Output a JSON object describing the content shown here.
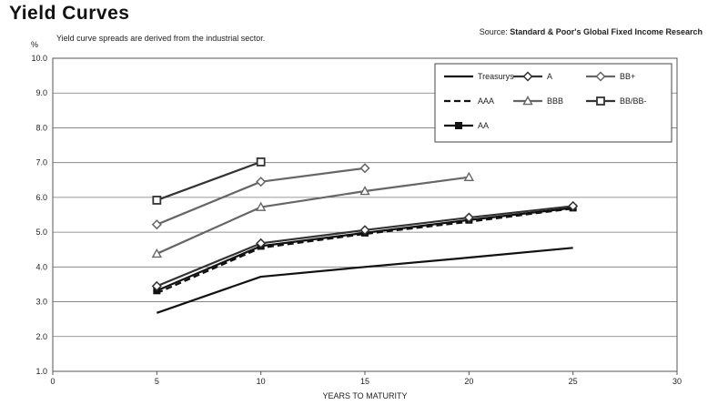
{
  "chart_data": {
    "type": "line",
    "title": "Yield Curves",
    "subtitle": "Yield curve spreads are derived from the industrial sector.",
    "source_label": "Source:",
    "source": "Standard & Poor's Global Fixed Income Research",
    "ylabel": "%",
    "xlabel": "YEARS TO MATURITY",
    "xlim": [
      0,
      30
    ],
    "ylim": [
      1.0,
      10.0
    ],
    "x_ticks": [
      0,
      5,
      10,
      15,
      20,
      25,
      30
    ],
    "y_ticks": [
      "1.0",
      "2.0",
      "3.0",
      "4.0",
      "5.0",
      "6.0",
      "7.0",
      "8.0",
      "9.0",
      "10.0"
    ],
    "grid": "horizontal",
    "legend_position": "top-right",
    "series": [
      {
        "name": "Treasurys",
        "marker": "none",
        "dash": "solid",
        "color": "#111111",
        "x": [
          5,
          10,
          15,
          20,
          25
        ],
        "y": [
          2.68,
          3.72,
          4.0,
          4.27,
          4.55
        ]
      },
      {
        "name": "AAA",
        "marker": "none",
        "dash": "dashed",
        "color": "#111111",
        "x": [
          5,
          10,
          15,
          20,
          25
        ],
        "y": [
          3.25,
          4.55,
          4.95,
          5.3,
          5.68
        ]
      },
      {
        "name": "AA",
        "marker": "square-filled",
        "dash": "solid",
        "color": "#111111",
        "x": [
          5,
          10,
          15,
          20,
          25
        ],
        "y": [
          3.32,
          4.6,
          4.98,
          5.35,
          5.7
        ]
      },
      {
        "name": "A",
        "marker": "diamond",
        "dash": "solid",
        "color": "#333333",
        "x": [
          5,
          10,
          15,
          20,
          25
        ],
        "y": [
          3.45,
          4.68,
          5.06,
          5.42,
          5.75
        ]
      },
      {
        "name": "BBB",
        "marker": "triangle",
        "dash": "solid",
        "color": "#666666",
        "x": [
          5,
          10,
          15,
          20
        ],
        "y": [
          4.38,
          5.72,
          6.18,
          6.58
        ]
      },
      {
        "name": "BB+",
        "marker": "diamond",
        "dash": "solid",
        "color": "#666666",
        "x": [
          5,
          10,
          15
        ],
        "y": [
          5.22,
          6.45,
          6.84
        ]
      },
      {
        "name": "BB/BB-",
        "marker": "square",
        "dash": "solid",
        "color": "#333333",
        "x": [
          5,
          10
        ],
        "y": [
          5.92,
          7.02
        ]
      }
    ],
    "legend_order": [
      "Treasurys",
      "A",
      "BB+",
      "AAA",
      "BBB",
      "BB/BB-",
      "AA"
    ]
  }
}
